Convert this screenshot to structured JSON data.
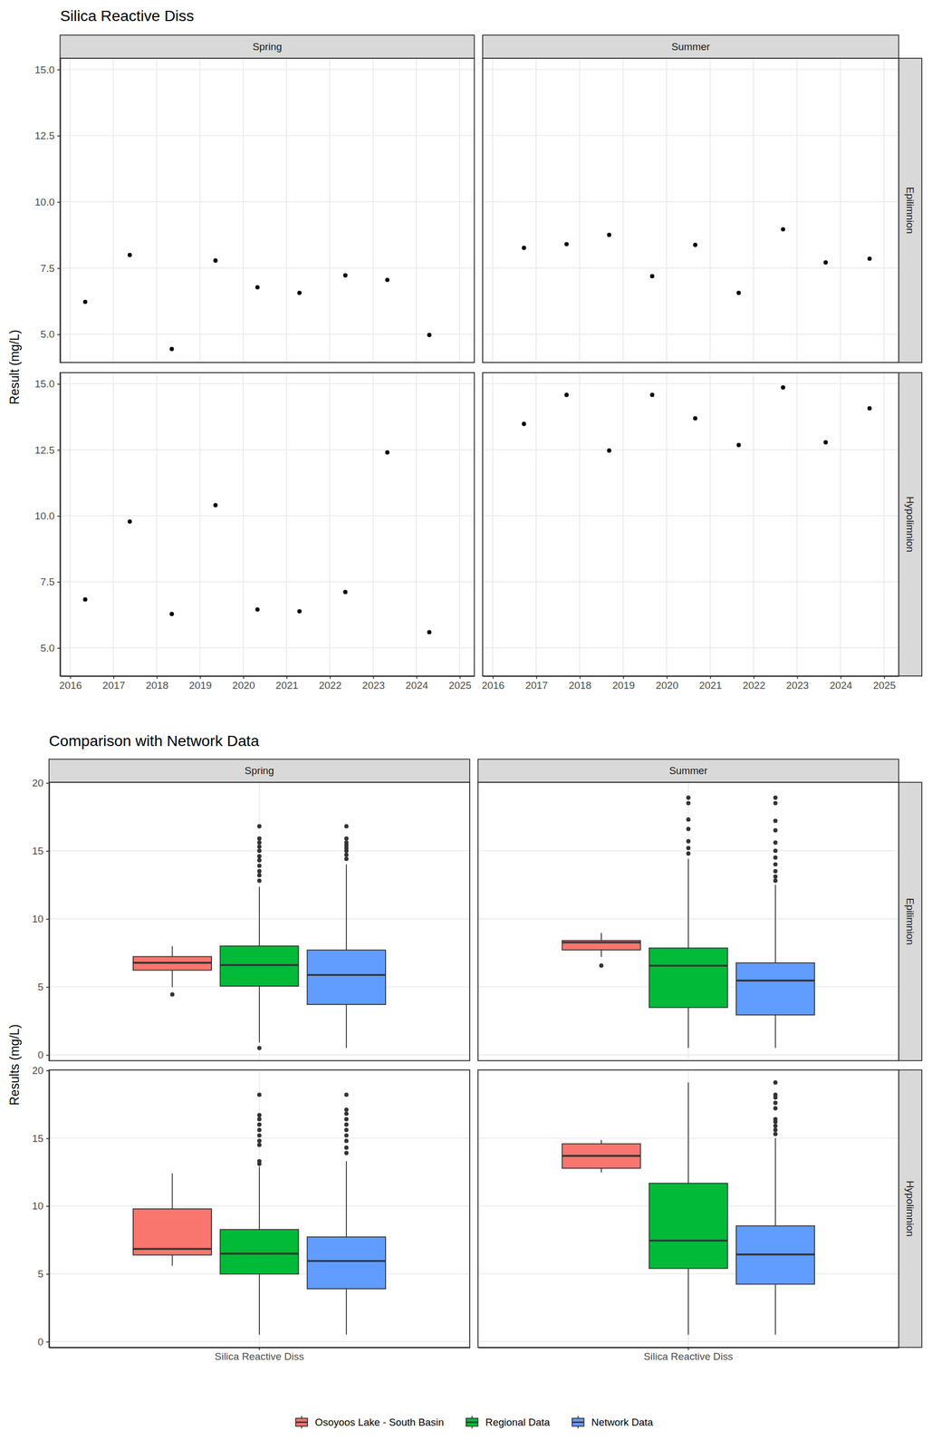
{
  "chart_data": [
    {
      "type": "scatter",
      "title": "Silica Reactive Diss",
      "y_label": "Result (mg/L)",
      "columns": [
        "Spring",
        "Summer"
      ],
      "rows": [
        "Epilimnion",
        "Hypolimnion"
      ],
      "xlim": [
        2015.77,
        2025.34
      ],
      "xticks": [
        2016,
        2017,
        2018,
        2019,
        2020,
        2021,
        2022,
        2023,
        2024,
        2025
      ],
      "ylim": [
        3.93,
        15.42
      ],
      "yticks": [
        {
          "value": 5,
          "label": "5.0"
        },
        7.5,
        {
          "value": 10,
          "label": "10.0"
        },
        12.5,
        {
          "value": 15,
          "label": "15.0"
        }
      ],
      "grid": true,
      "color": "#000000",
      "marker": "circle",
      "panels": [
        {
          "x": [
            2016.35,
            2017.38,
            2018.35,
            2019.36,
            2020.33,
            2021.3,
            2022.36,
            2023.33,
            2024.3
          ],
          "values": [
            6.22,
            7.99,
            4.44,
            7.78,
            6.77,
            6.56,
            7.22,
            7.05,
            4.97
          ]
        },
        {
          "x": [
            2016.72,
            2017.7,
            2018.68,
            2019.67,
            2020.66,
            2021.66,
            2022.68,
            2023.66,
            2024.67
          ],
          "values": [
            8.26,
            8.4,
            8.75,
            7.19,
            8.37,
            6.56,
            8.96,
            7.71,
            7.85
          ]
        },
        {
          "x": [
            2016.35,
            2017.38,
            2018.35,
            2019.36,
            2020.33,
            2021.3,
            2022.36,
            2023.33,
            2024.3
          ],
          "values": [
            6.83,
            9.78,
            6.28,
            10.4,
            6.45,
            6.38,
            7.11,
            12.4,
            5.59
          ]
        },
        {
          "x": [
            2016.72,
            2017.7,
            2018.68,
            2019.67,
            2020.66,
            2021.66,
            2022.68,
            2023.66,
            2024.67
          ],
          "values": [
            13.48,
            14.58,
            12.47,
            14.58,
            13.69,
            12.68,
            14.86,
            12.78,
            14.07
          ]
        }
      ]
    },
    {
      "type": "box",
      "title": "Comparison with Network Data",
      "y_label": "Results (mg/L)",
      "columns": [
        "Spring",
        "Summer"
      ],
      "rows": [
        "Epilimnion",
        "Hypolimnion"
      ],
      "categories": [
        "Silica Reactive Diss"
      ],
      "ylim": [
        -0.43,
        20.03
      ],
      "yticks": [
        0,
        5,
        10,
        15,
        20
      ],
      "grid": true,
      "legend": "bottom",
      "series": [
        {
          "name": "Osoyoos Lake - South Basin",
          "color": "#F8766D"
        },
        {
          "name": "Regional Data",
          "color": "#00BA38"
        },
        {
          "name": "Network Data",
          "color": "#619CFF"
        }
      ],
      "panels": [
        {
          "boxes": [
            {
              "min": 4.97,
              "q1": 6.22,
              "median": 6.77,
              "q3": 7.22,
              "max": 7.99,
              "outliers": [
                4.44
              ]
            },
            {
              "min": 0.9,
              "q1": 5.05,
              "median": 6.6,
              "q3": 8.0,
              "max": 12.35,
              "outliers": [
                16.8,
                15.9,
                15.6,
                15.3,
                15.0,
                14.6,
                14.3,
                13.9,
                13.5,
                13.2,
                12.8,
                0.5
              ]
            },
            {
              "min": 0.5,
              "q1": 3.7,
              "median": 5.87,
              "q3": 7.7,
              "max": 14.0,
              "outliers": [
                16.8,
                15.9,
                15.6,
                15.4,
                15.2,
                15.0,
                14.7,
                14.4
              ]
            }
          ]
        },
        {
          "boxes": [
            {
              "min": 7.19,
              "q1": 7.71,
              "median": 8.26,
              "q3": 8.4,
              "max": 8.96,
              "outliers": [
                6.56
              ]
            },
            {
              "min": 0.5,
              "q1": 3.48,
              "median": 6.55,
              "q3": 7.85,
              "max": 14.4,
              "outliers": [
                18.9,
                18.5,
                17.3,
                16.6,
                15.7,
                15.2,
                14.8
              ]
            },
            {
              "min": 0.5,
              "q1": 2.93,
              "median": 5.46,
              "q3": 6.76,
              "max": 12.5,
              "outliers": [
                18.9,
                18.5,
                17.2,
                16.5,
                15.6,
                15.0,
                14.5,
                14.0,
                13.5,
                13.1,
                12.8
              ]
            }
          ]
        },
        {
          "boxes": [
            {
              "min": 5.59,
              "q1": 6.38,
              "median": 6.83,
              "q3": 9.78,
              "max": 12.4,
              "outliers": []
            },
            {
              "min": 0.5,
              "q1": 4.98,
              "median": 6.48,
              "q3": 8.26,
              "max": 12.9,
              "outliers": [
                18.2,
                16.7,
                16.4,
                16.0,
                15.6,
                15.2,
                14.8,
                14.5,
                13.3,
                13.1
              ]
            },
            {
              "min": 0.5,
              "q1": 3.89,
              "median": 5.94,
              "q3": 7.71,
              "max": 13.3,
              "outliers": [
                18.2,
                17.1,
                16.8,
                16.4,
                16.0,
                15.6,
                15.2,
                14.8,
                14.3,
                13.9
              ]
            }
          ]
        },
        {
          "boxes": [
            {
              "min": 12.47,
              "q1": 12.78,
              "median": 13.69,
              "q3": 14.58,
              "max": 14.86,
              "outliers": []
            },
            {
              "min": 0.5,
              "q1": 5.39,
              "median": 7.44,
              "q3": 11.67,
              "max": 19.1,
              "outliers": []
            },
            {
              "min": 0.5,
              "q1": 4.23,
              "median": 6.42,
              "q3": 8.53,
              "max": 15.0,
              "outliers": [
                19.1,
                18.2,
                18.0,
                17.6,
                17.2,
                16.4,
                16.2,
                15.9,
                15.6,
                15.3
              ]
            }
          ]
        }
      ]
    }
  ]
}
